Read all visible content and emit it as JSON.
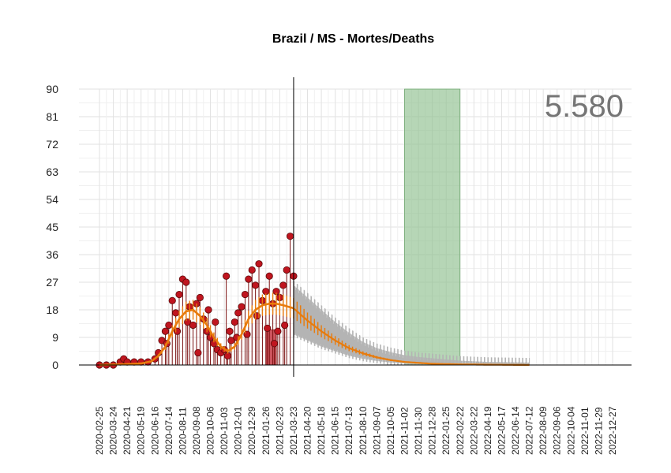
{
  "chart_data": {
    "type": "line",
    "title": "Brazil / MS - Mortes/Deaths",
    "annotation_value": "5.580",
    "xlabel": "",
    "ylabel": "",
    "ylim": [
      0,
      90
    ],
    "y_ticks": [
      "0",
      "9",
      "18",
      "27",
      "36",
      "45",
      "54",
      "63",
      "72",
      "81",
      "90"
    ],
    "x_start_date": "2020-02-25",
    "x_end_date": "2023-01-24",
    "x_tick_labels": [
      "2020-02-25",
      "2020-03-24",
      "2020-04-21",
      "2020-05-19",
      "2020-06-16",
      "2020-07-14",
      "2020-08-11",
      "2020-09-08",
      "2020-10-06",
      "2020-11-03",
      "2020-12-01",
      "2020-12-29",
      "2021-01-26",
      "2021-02-23",
      "2021-03-23",
      "2021-04-20",
      "2021-05-18",
      "2021-06-15",
      "2021-07-13",
      "2021-08-10",
      "2021-09-07",
      "2021-10-05",
      "2021-11-02",
      "2021-11-30",
      "2021-12-28",
      "2022-01-25",
      "2022-02-22",
      "2022-03-22",
      "2022-04-19",
      "2022-05-17",
      "2022-06-14",
      "2022-07-12",
      "2022-08-09",
      "2022-09-06",
      "2022-10-04",
      "2022-11-01",
      "2022-11-29",
      "2022-12-27"
    ],
    "grid": true,
    "vertical_line_date": "2021-03-23",
    "shaded_region": {
      "start": "2021-11-02",
      "end": "2022-02-22",
      "color": "#8fc08f"
    },
    "highlight_bar": {
      "date": "2021-01-26",
      "value": 11.5,
      "color": "#c8414b"
    },
    "series": [
      {
        "name": "",
        "type": "scatter",
        "color": "#c0151f",
        "points": [
          [
            "2020-02-25",
            0
          ],
          [
            "2020-03-10",
            0
          ],
          [
            "2020-03-24",
            0
          ],
          [
            "2020-04-07",
            1
          ],
          [
            "2020-04-14",
            2
          ],
          [
            "2020-04-21",
            1
          ],
          [
            "2020-05-05",
            1
          ],
          [
            "2020-05-19",
            1
          ],
          [
            "2020-06-02",
            1
          ],
          [
            "2020-06-16",
            2
          ],
          [
            "2020-06-23",
            4
          ],
          [
            "2020-06-30",
            8
          ],
          [
            "2020-07-07",
            11
          ],
          [
            "2020-07-14",
            13
          ],
          [
            "2020-07-21",
            21
          ],
          [
            "2020-07-28",
            17
          ],
          [
            "2020-08-04",
            23
          ],
          [
            "2020-08-11",
            28
          ],
          [
            "2020-08-18",
            27
          ],
          [
            "2020-08-25",
            19
          ],
          [
            "2020-09-01",
            13
          ],
          [
            "2020-09-08",
            20
          ],
          [
            "2020-09-15",
            22
          ],
          [
            "2020-09-22",
            15
          ],
          [
            "2020-09-29",
            11
          ],
          [
            "2020-10-06",
            9
          ],
          [
            "2020-10-13",
            7
          ],
          [
            "2020-10-20",
            5
          ],
          [
            "2020-10-27",
            4
          ],
          [
            "2020-11-03",
            5
          ],
          [
            "2020-11-10",
            3
          ],
          [
            "2020-11-17",
            8
          ],
          [
            "2020-11-24",
            14
          ],
          [
            "2020-12-01",
            17
          ],
          [
            "2020-12-08",
            19
          ],
          [
            "2020-12-15",
            23
          ],
          [
            "2020-12-22",
            28
          ],
          [
            "2020-12-29",
            31
          ],
          [
            "2021-01-05",
            26
          ],
          [
            "2021-01-12",
            33
          ],
          [
            "2021-01-19",
            21
          ],
          [
            "2021-01-26",
            24
          ],
          [
            "2021-02-02",
            29
          ],
          [
            "2021-02-09",
            20
          ],
          [
            "2021-02-16",
            24
          ],
          [
            "2021-02-23",
            22
          ],
          [
            "2021-03-02",
            26
          ],
          [
            "2021-03-09",
            31
          ],
          [
            "2021-03-16",
            42
          ],
          [
            "2021-03-23",
            29
          ],
          [
            "2020-07-10",
            7
          ],
          [
            "2020-07-31",
            11
          ],
          [
            "2020-08-21",
            14
          ],
          [
            "2020-09-11",
            4
          ],
          [
            "2020-10-02",
            18
          ],
          [
            "2020-10-16",
            14
          ],
          [
            "2020-11-07",
            29
          ],
          [
            "2020-11-14",
            11
          ],
          [
            "2020-11-28",
            9
          ],
          [
            "2020-12-19",
            10
          ],
          [
            "2021-01-08",
            16
          ],
          [
            "2021-01-29",
            12
          ],
          [
            "2021-02-12",
            7
          ],
          [
            "2021-02-19",
            11
          ],
          [
            "2021-03-05",
            13
          ]
        ]
      },
      {
        "name": "",
        "type": "line",
        "color": "#e87b0c",
        "points": [
          [
            "2020-02-25",
            0
          ],
          [
            "2020-04-21",
            0.3
          ],
          [
            "2020-05-19",
            0.5
          ],
          [
            "2020-06-09",
            1.2
          ],
          [
            "2020-06-23",
            3
          ],
          [
            "2020-07-07",
            6
          ],
          [
            "2020-07-21",
            11
          ],
          [
            "2020-08-04",
            15
          ],
          [
            "2020-08-18",
            17.5
          ],
          [
            "2020-09-01",
            18
          ],
          [
            "2020-09-15",
            16
          ],
          [
            "2020-09-29",
            13
          ],
          [
            "2020-10-13",
            9
          ],
          [
            "2020-10-27",
            6
          ],
          [
            "2020-11-10",
            4.5
          ],
          [
            "2020-11-24",
            6
          ],
          [
            "2020-12-08",
            10
          ],
          [
            "2020-12-22",
            15
          ],
          [
            "2021-01-05",
            18
          ],
          [
            "2021-01-19",
            19.5
          ],
          [
            "2021-02-02",
            20
          ],
          [
            "2021-02-16",
            20
          ],
          [
            "2021-03-02",
            19.5
          ],
          [
            "2021-03-23",
            18.5
          ],
          [
            "2021-04-20",
            14.5
          ],
          [
            "2021-05-18",
            11
          ],
          [
            "2021-06-15",
            8
          ],
          [
            "2021-07-13",
            5.5
          ],
          [
            "2021-08-10",
            3.8
          ],
          [
            "2021-09-07",
            2.5
          ],
          [
            "2021-10-05",
            1.6
          ],
          [
            "2021-11-02",
            1
          ],
          [
            "2021-11-30",
            0.7
          ],
          [
            "2021-12-28",
            0.4
          ],
          [
            "2022-02-22",
            0.2
          ],
          [
            "2022-04-19",
            0.1
          ],
          [
            "2022-07-12",
            0
          ]
        ]
      },
      {
        "name": "",
        "type": "band",
        "color": "#b4b4b4",
        "points": [
          [
            "2021-03-23",
            10,
            26
          ],
          [
            "2021-04-20",
            8,
            22
          ],
          [
            "2021-05-18",
            6,
            18
          ],
          [
            "2021-06-15",
            4.5,
            14
          ],
          [
            "2021-07-13",
            3,
            10.5
          ],
          [
            "2021-08-10",
            2,
            7.5
          ],
          [
            "2021-09-07",
            1.3,
            5.5
          ],
          [
            "2021-10-05",
            0.8,
            4.2
          ],
          [
            "2021-11-02",
            0.5,
            3.2
          ],
          [
            "2021-11-30",
            0.3,
            2.6
          ],
          [
            "2021-12-28",
            0.2,
            2.2
          ],
          [
            "2022-01-25",
            0.1,
            1.8
          ],
          [
            "2022-02-22",
            0,
            1.4
          ],
          [
            "2022-04-19",
            0,
            1
          ],
          [
            "2022-07-12",
            0,
            0.8
          ]
        ]
      }
    ]
  }
}
